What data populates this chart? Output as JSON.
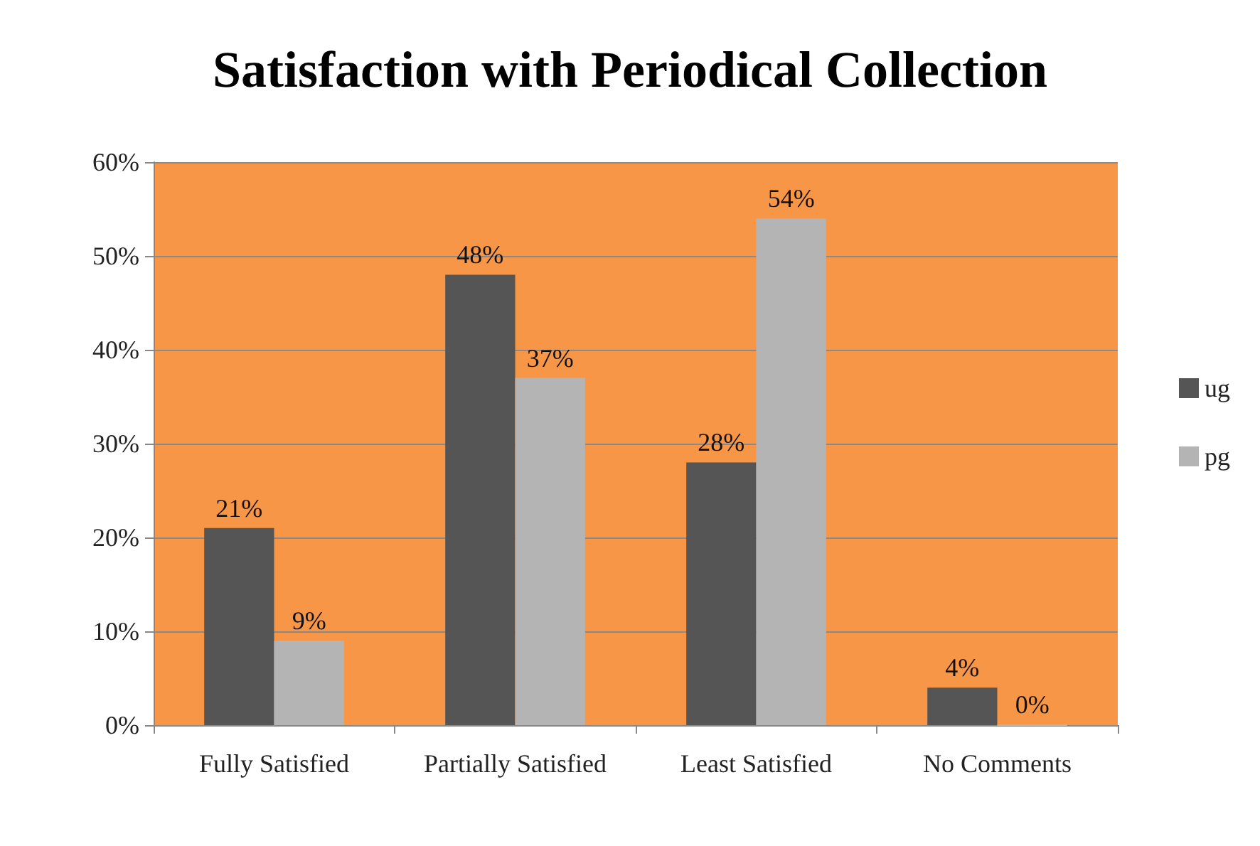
{
  "chart_data": {
    "type": "bar",
    "title": "Satisfaction with Periodical Collection",
    "categories": [
      "Fully Satisfied",
      "Partially Satisfied",
      "Least Satisfied",
      "No Comments"
    ],
    "series": [
      {
        "name": "ug",
        "color": "#555555",
        "values": [
          21,
          48,
          28,
          4
        ],
        "value_labels": [
          "21%",
          "48%",
          "28%",
          "4%"
        ]
      },
      {
        "name": "pg",
        "color": "#b4b4b4",
        "values": [
          9,
          37,
          54,
          0
        ],
        "value_labels": [
          "9%",
          "37%",
          "54%",
          "0%"
        ]
      }
    ],
    "ylim": [
      0,
      60
    ],
    "yticks": [
      {
        "value": 0,
        "label": "0%"
      },
      {
        "value": 10,
        "label": "10%"
      },
      {
        "value": 20,
        "label": "20%"
      },
      {
        "value": 30,
        "label": "30%"
      },
      {
        "value": 40,
        "label": "40%"
      },
      {
        "value": 50,
        "label": "50%"
      },
      {
        "value": 60,
        "label": "60%"
      }
    ],
    "grid": "y",
    "legend": "right"
  }
}
